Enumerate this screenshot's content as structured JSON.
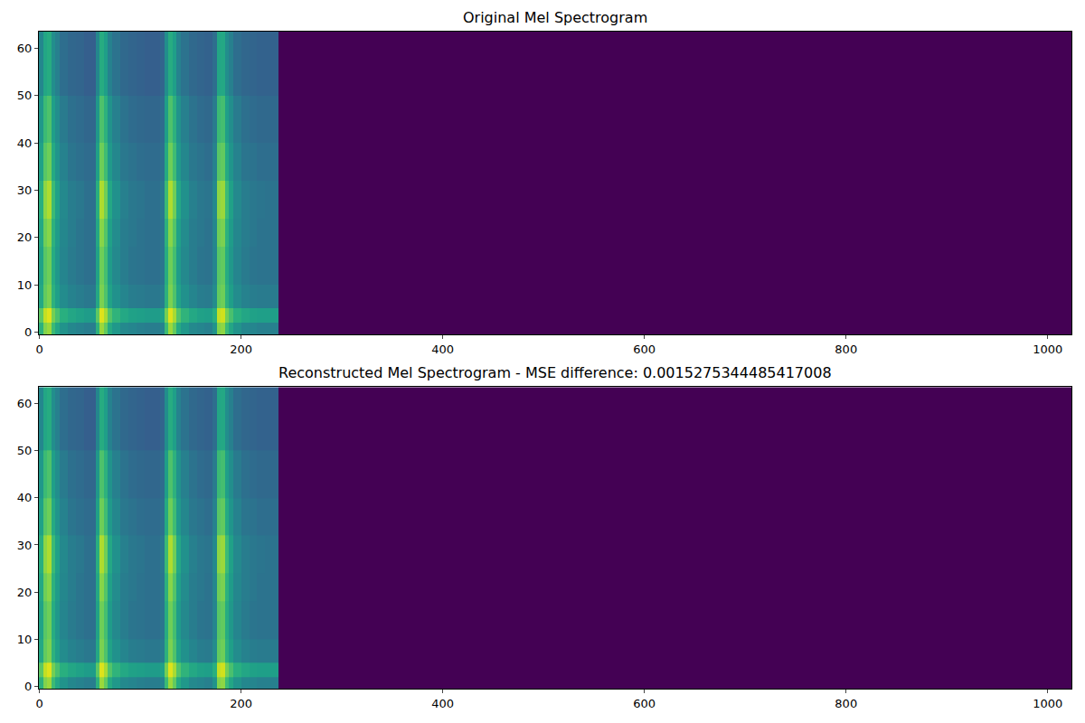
{
  "chart_data": [
    {
      "type": "heatmap",
      "title": "Original Mel Spectrogram",
      "color": "viridis",
      "x_edges": [
        -0.5,
        4,
        8,
        12,
        16,
        20,
        28,
        36,
        44,
        52,
        56,
        60,
        64,
        68,
        72,
        80,
        88,
        96,
        104,
        112,
        120,
        124,
        128,
        132,
        136,
        140,
        148,
        156,
        164,
        172,
        176,
        180,
        184,
        188,
        192,
        200,
        208,
        216,
        224,
        232,
        237,
        1023.5
      ],
      "y_edges": [
        -0.5,
        2,
        5,
        10,
        18,
        24,
        32,
        40,
        50,
        63.5
      ],
      "z": [
        [
          0.64,
          0.81,
          0.85,
          0.68,
          0.59,
          0.51,
          0.46,
          0.44,
          0.42,
          0.42,
          0.64,
          0.85,
          0.76,
          0.61,
          0.53,
          0.47,
          0.45,
          0.43,
          0.42,
          0.42,
          0.44,
          0.68,
          0.85,
          0.76,
          0.61,
          0.53,
          0.47,
          0.45,
          0.43,
          0.51,
          0.81,
          0.83,
          0.68,
          0.59,
          0.51,
          0.46,
          0.45,
          0.43,
          0.43,
          0.43,
          0
        ],
        [
          0.75,
          0.91,
          0.95,
          0.79,
          0.71,
          0.63,
          0.59,
          0.57,
          0.55,
          0.55,
          0.75,
          0.95,
          0.87,
          0.73,
          0.65,
          0.6,
          0.57,
          0.56,
          0.55,
          0.55,
          0.57,
          0.79,
          0.95,
          0.87,
          0.73,
          0.65,
          0.6,
          0.57,
          0.56,
          0.63,
          0.91,
          0.93,
          0.79,
          0.71,
          0.63,
          0.59,
          0.57,
          0.56,
          0.56,
          0.56,
          0
        ],
        [
          0.6,
          0.76,
          0.8,
          0.64,
          0.56,
          0.48,
          0.44,
          0.42,
          0.4,
          0.4,
          0.6,
          0.8,
          0.72,
          0.58,
          0.5,
          0.45,
          0.42,
          0.41,
          0.4,
          0.4,
          0.42,
          0.64,
          0.8,
          0.72,
          0.58,
          0.5,
          0.45,
          0.42,
          0.41,
          0.48,
          0.76,
          0.78,
          0.64,
          0.56,
          0.48,
          0.44,
          0.42,
          0.41,
          0.41,
          0.41,
          0
        ],
        [
          0.58,
          0.74,
          0.78,
          0.62,
          0.53,
          0.45,
          0.41,
          0.39,
          0.37,
          0.37,
          0.58,
          0.78,
          0.7,
          0.55,
          0.47,
          0.42,
          0.39,
          0.38,
          0.37,
          0.37,
          0.39,
          0.62,
          0.78,
          0.7,
          0.55,
          0.47,
          0.42,
          0.39,
          0.38,
          0.45,
          0.74,
          0.76,
          0.62,
          0.53,
          0.45,
          0.41,
          0.39,
          0.38,
          0.38,
          0.38,
          0
        ],
        [
          0.6,
          0.78,
          0.82,
          0.64,
          0.55,
          0.46,
          0.42,
          0.39,
          0.37,
          0.37,
          0.6,
          0.82,
          0.73,
          0.57,
          0.48,
          0.42,
          0.4,
          0.38,
          0.37,
          0.37,
          0.39,
          0.64,
          0.82,
          0.73,
          0.57,
          0.48,
          0.42,
          0.4,
          0.38,
          0.46,
          0.78,
          0.8,
          0.64,
          0.55,
          0.46,
          0.42,
          0.4,
          0.38,
          0.38,
          0.38,
          0
        ],
        [
          0.63,
          0.83,
          0.88,
          0.68,
          0.57,
          0.47,
          0.42,
          0.4,
          0.37,
          0.37,
          0.63,
          0.88,
          0.78,
          0.6,
          0.5,
          0.43,
          0.4,
          0.39,
          0.37,
          0.37,
          0.4,
          0.68,
          0.88,
          0.78,
          0.6,
          0.5,
          0.43,
          0.4,
          0.39,
          0.47,
          0.83,
          0.85,
          0.68,
          0.57,
          0.47,
          0.42,
          0.4,
          0.39,
          0.38,
          0.38,
          0
        ],
        [
          0.57,
          0.74,
          0.78,
          0.61,
          0.52,
          0.44,
          0.39,
          0.37,
          0.35,
          0.35,
          0.57,
          0.78,
          0.69,
          0.54,
          0.46,
          0.4,
          0.38,
          0.36,
          0.35,
          0.35,
          0.37,
          0.61,
          0.78,
          0.69,
          0.54,
          0.46,
          0.4,
          0.38,
          0.36,
          0.44,
          0.74,
          0.76,
          0.61,
          0.52,
          0.44,
          0.39,
          0.38,
          0.36,
          0.36,
          0.36,
          0
        ],
        [
          0.53,
          0.68,
          0.72,
          0.56,
          0.49,
          0.41,
          0.37,
          0.35,
          0.33,
          0.33,
          0.53,
          0.72,
          0.64,
          0.51,
          0.43,
          0.38,
          0.35,
          0.34,
          0.33,
          0.33,
          0.35,
          0.56,
          0.72,
          0.64,
          0.51,
          0.43,
          0.38,
          0.35,
          0.34,
          0.41,
          0.68,
          0.7,
          0.56,
          0.49,
          0.41,
          0.37,
          0.35,
          0.34,
          0.34,
          0.34,
          0
        ],
        [
          0.46,
          0.59,
          0.62,
          0.49,
          0.43,
          0.36,
          0.33,
          0.32,
          0.3,
          0.3,
          0.46,
          0.62,
          0.56,
          0.44,
          0.38,
          0.34,
          0.32,
          0.31,
          0.3,
          0.3,
          0.32,
          0.49,
          0.62,
          0.56,
          0.44,
          0.38,
          0.34,
          0.32,
          0.31,
          0.36,
          0.59,
          0.6,
          0.49,
          0.43,
          0.36,
          0.33,
          0.32,
          0.31,
          0.31,
          0.31,
          0
        ]
      ],
      "zlim": [
        0,
        1
      ],
      "xlim": [
        -0.5,
        1023.5
      ],
      "ylim": [
        -0.5,
        63.5
      ],
      "xticks": [
        0,
        200,
        400,
        600,
        800,
        1000
      ],
      "yticks": [
        0,
        10,
        20,
        30,
        40,
        50,
        60
      ]
    },
    {
      "type": "heatmap",
      "title": "Reconstructed Mel Spectrogram - MSE difference: 0.0015275344485417008",
      "color": "viridis",
      "x_edges": [
        -0.5,
        4,
        8,
        12,
        16,
        20,
        28,
        36,
        44,
        52,
        56,
        60,
        64,
        68,
        72,
        80,
        88,
        96,
        104,
        112,
        120,
        124,
        128,
        132,
        136,
        140,
        148,
        156,
        164,
        172,
        176,
        180,
        184,
        188,
        192,
        200,
        208,
        216,
        224,
        232,
        237,
        1023.5
      ],
      "y_edges": [
        -0.5,
        2,
        5,
        10,
        18,
        24,
        32,
        40,
        50,
        63.5
      ],
      "z": [
        [
          0.64,
          0.81,
          0.85,
          0.68,
          0.59,
          0.51,
          0.46,
          0.44,
          0.42,
          0.42,
          0.64,
          0.85,
          0.76,
          0.61,
          0.53,
          0.47,
          0.45,
          0.43,
          0.42,
          0.42,
          0.44,
          0.68,
          0.85,
          0.76,
          0.61,
          0.53,
          0.47,
          0.45,
          0.43,
          0.51,
          0.81,
          0.83,
          0.68,
          0.59,
          0.51,
          0.46,
          0.45,
          0.43,
          0.43,
          0.43,
          0
        ],
        [
          0.75,
          0.91,
          0.95,
          0.79,
          0.71,
          0.63,
          0.59,
          0.57,
          0.55,
          0.55,
          0.75,
          0.95,
          0.87,
          0.73,
          0.65,
          0.6,
          0.57,
          0.56,
          0.55,
          0.55,
          0.57,
          0.79,
          0.95,
          0.87,
          0.73,
          0.65,
          0.6,
          0.57,
          0.56,
          0.63,
          0.91,
          0.93,
          0.79,
          0.71,
          0.63,
          0.59,
          0.57,
          0.56,
          0.56,
          0.56,
          0
        ],
        [
          0.6,
          0.76,
          0.8,
          0.64,
          0.56,
          0.48,
          0.44,
          0.42,
          0.4,
          0.4,
          0.6,
          0.8,
          0.72,
          0.58,
          0.5,
          0.45,
          0.42,
          0.41,
          0.4,
          0.4,
          0.42,
          0.64,
          0.8,
          0.72,
          0.58,
          0.5,
          0.45,
          0.42,
          0.41,
          0.48,
          0.76,
          0.78,
          0.64,
          0.56,
          0.48,
          0.44,
          0.42,
          0.41,
          0.41,
          0.41,
          0
        ],
        [
          0.58,
          0.74,
          0.78,
          0.62,
          0.53,
          0.45,
          0.41,
          0.39,
          0.37,
          0.37,
          0.58,
          0.78,
          0.7,
          0.55,
          0.47,
          0.42,
          0.39,
          0.38,
          0.37,
          0.37,
          0.39,
          0.62,
          0.78,
          0.7,
          0.55,
          0.47,
          0.42,
          0.39,
          0.38,
          0.45,
          0.74,
          0.76,
          0.62,
          0.53,
          0.45,
          0.41,
          0.39,
          0.38,
          0.38,
          0.38,
          0
        ],
        [
          0.6,
          0.78,
          0.82,
          0.64,
          0.55,
          0.46,
          0.42,
          0.39,
          0.37,
          0.37,
          0.6,
          0.82,
          0.73,
          0.57,
          0.48,
          0.42,
          0.4,
          0.38,
          0.37,
          0.37,
          0.39,
          0.64,
          0.82,
          0.73,
          0.57,
          0.48,
          0.42,
          0.4,
          0.38,
          0.46,
          0.78,
          0.8,
          0.64,
          0.55,
          0.46,
          0.42,
          0.4,
          0.38,
          0.38,
          0.38,
          0
        ],
        [
          0.63,
          0.83,
          0.88,
          0.68,
          0.57,
          0.47,
          0.42,
          0.4,
          0.37,
          0.37,
          0.63,
          0.88,
          0.78,
          0.6,
          0.5,
          0.43,
          0.4,
          0.39,
          0.37,
          0.37,
          0.4,
          0.68,
          0.88,
          0.78,
          0.6,
          0.5,
          0.43,
          0.4,
          0.39,
          0.47,
          0.83,
          0.85,
          0.68,
          0.57,
          0.47,
          0.42,
          0.4,
          0.39,
          0.38,
          0.38,
          0
        ],
        [
          0.57,
          0.74,
          0.78,
          0.61,
          0.52,
          0.44,
          0.39,
          0.37,
          0.35,
          0.35,
          0.57,
          0.78,
          0.69,
          0.54,
          0.46,
          0.4,
          0.38,
          0.36,
          0.35,
          0.35,
          0.37,
          0.61,
          0.78,
          0.69,
          0.54,
          0.46,
          0.4,
          0.38,
          0.36,
          0.44,
          0.74,
          0.76,
          0.61,
          0.52,
          0.44,
          0.39,
          0.38,
          0.36,
          0.36,
          0.36,
          0
        ],
        [
          0.53,
          0.68,
          0.72,
          0.56,
          0.49,
          0.41,
          0.37,
          0.35,
          0.33,
          0.33,
          0.53,
          0.72,
          0.64,
          0.51,
          0.43,
          0.38,
          0.35,
          0.34,
          0.33,
          0.33,
          0.35,
          0.56,
          0.72,
          0.64,
          0.51,
          0.43,
          0.38,
          0.35,
          0.34,
          0.41,
          0.68,
          0.7,
          0.56,
          0.49,
          0.41,
          0.37,
          0.35,
          0.34,
          0.34,
          0.34,
          0
        ],
        [
          0.46,
          0.59,
          0.62,
          0.49,
          0.43,
          0.36,
          0.33,
          0.32,
          0.3,
          0.3,
          0.46,
          0.62,
          0.56,
          0.44,
          0.38,
          0.34,
          0.32,
          0.31,
          0.3,
          0.3,
          0.32,
          0.49,
          0.62,
          0.56,
          0.44,
          0.38,
          0.34,
          0.32,
          0.31,
          0.36,
          0.59,
          0.6,
          0.49,
          0.43,
          0.36,
          0.33,
          0.32,
          0.31,
          0.31,
          0.31,
          0
        ]
      ],
      "zlim": [
        0,
        1
      ],
      "xlim": [
        -0.5,
        1023.5
      ],
      "ylim": [
        -0.5,
        63.5
      ],
      "xticks": [
        0,
        200,
        400,
        600,
        800,
        1000
      ],
      "yticks": [
        0,
        10,
        20,
        30,
        40,
        50,
        60
      ]
    }
  ]
}
